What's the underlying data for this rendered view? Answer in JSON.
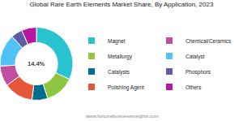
{
  "chart_data": {
    "type": "donut",
    "title": "Global Rare Earth Elements Market Share, By Application, 2023",
    "categories": [
      "Magnet",
      "Metallurgy",
      "Catalysts",
      "Polishing Agent",
      "Chemical/Ceramics",
      "Catalyst",
      "Phosphors",
      "Others"
    ],
    "values": [
      32,
      13,
      7,
      13,
      9,
      14.4,
      5,
      6.6
    ],
    "colors": [
      "#29c3d0",
      "#8dc63f",
      "#006e8c",
      "#e8563a",
      "#c04fa0",
      "#4fc3f7",
      "#5b5ea6",
      "#b5179e"
    ],
    "center_label": "14.4%",
    "source": "www.fortunebusinessinsights.com",
    "legend": "right"
  }
}
